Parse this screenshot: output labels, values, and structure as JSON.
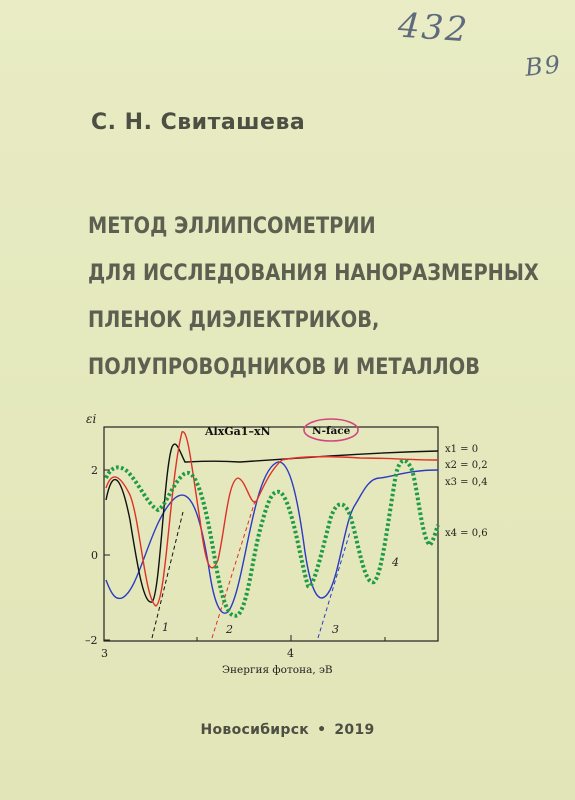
{
  "handwriting": {
    "note1": "432",
    "note2": "B9"
  },
  "book": {
    "author": "С. Н. Свиташева",
    "title_lines": [
      "МЕТОД ЭЛЛИПСОМЕТРИИ",
      "ДЛЯ ИССЛЕДОВАНИЯ НАНОРАЗМЕРНЫХ",
      "ПЛЕНОК ДИЭЛЕКТРИКОВ,",
      "ПОЛУПРОВОДНИКОВ И МЕТАЛЛОВ"
    ],
    "city": "Новосибирск",
    "separator": "•",
    "year": "2019"
  },
  "figure": {
    "ylabel": "εi",
    "xlabel": "Энергия фотона, эВ",
    "material": "AlxGa1–xN",
    "badge": "N-face",
    "x_ticks": [
      "3",
      "4"
    ],
    "y_ticks": [
      "2",
      "0",
      "–2"
    ],
    "curve_markers": [
      "1",
      "2",
      "3",
      "4"
    ],
    "legend": [
      "x1 = 0",
      "x2 = 0,2",
      "x3 = 0,4",
      "x4 = 0,6"
    ],
    "colors": {
      "x1": "#111111",
      "x2": "#e0302a",
      "x3": "#2a3bc4",
      "x4": "#1f9a45"
    }
  }
}
